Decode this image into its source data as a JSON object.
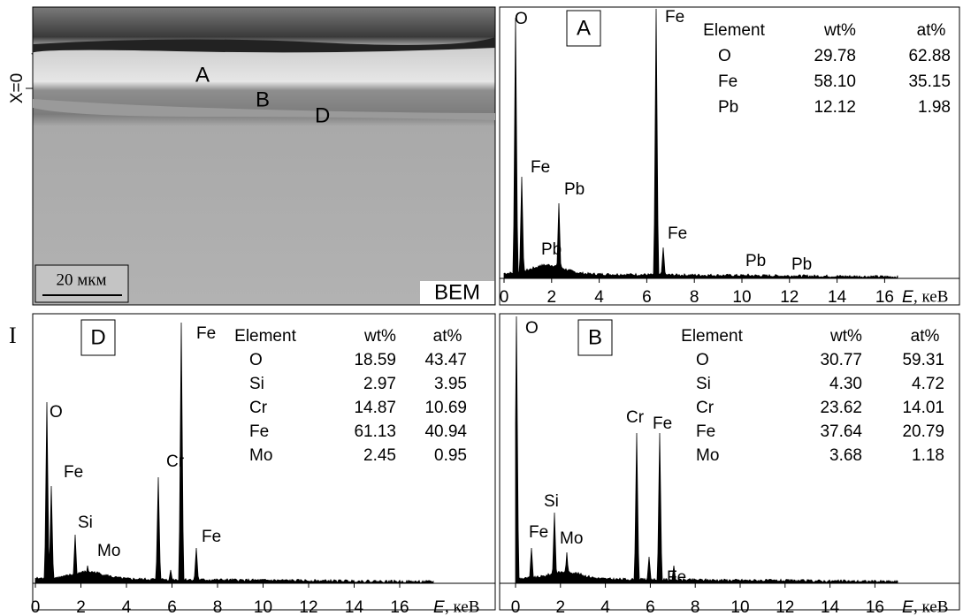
{
  "figure_mark": "I",
  "image": {
    "axis_label": "X=0",
    "layer_labels": [
      "A",
      "B",
      "D"
    ],
    "scale_bar": "20 мкм",
    "mode": "BEM"
  },
  "panels": [
    {
      "label": "A",
      "table": {
        "header": [
          "Element",
          "wt%",
          "at%"
        ],
        "rows": [
          [
            "O",
            "29.78",
            "62.88"
          ],
          [
            "Fe",
            "58.10",
            "35.15"
          ],
          [
            "Pb",
            "12.12",
            "1.98"
          ]
        ]
      },
      "peak_labels": [
        "O",
        "Fe",
        "Fe",
        "Pb",
        "Pb",
        "Fe",
        "Pb",
        "Pb"
      ],
      "x_ticks": [
        "0",
        "2",
        "4",
        "6",
        "8",
        "10",
        "12",
        "14",
        "16"
      ],
      "x_axis_label": {
        "symbol": "E",
        "unit": ", кеВ"
      }
    },
    {
      "label": "D",
      "table": {
        "header": [
          "Element",
          "wt%",
          "at%"
        ],
        "rows": [
          [
            "O",
            "18.59",
            "43.47"
          ],
          [
            "Si",
            "2.97",
            "3.95"
          ],
          [
            "Cr",
            "14.87",
            "10.69"
          ],
          [
            "Fe",
            "61.13",
            "40.94"
          ],
          [
            "Mo",
            "2.45",
            "0.95"
          ]
        ]
      },
      "peak_labels": [
        "O",
        "Fe",
        "Si",
        "Mo",
        "Cr",
        "Fe",
        "Fe"
      ],
      "x_ticks": [
        "0",
        "2",
        "4",
        "6",
        "8",
        "10",
        "12",
        "14",
        "16"
      ],
      "x_axis_label": {
        "symbol": "E",
        "unit": ", кеВ"
      }
    },
    {
      "label": "B",
      "table": {
        "header": [
          "Element",
          "wt%",
          "at%"
        ],
        "rows": [
          [
            "O",
            "30.77",
            "59.31"
          ],
          [
            "Si",
            "4.30",
            "4.72"
          ],
          [
            "Cr",
            "23.62",
            "14.01"
          ],
          [
            "Fe",
            "37.64",
            "20.79"
          ],
          [
            "Mo",
            "3.68",
            "1.18"
          ]
        ]
      },
      "peak_labels": [
        "O",
        "Fe",
        "Si",
        "Mo",
        "Cr",
        "Fe",
        "Fe"
      ],
      "x_ticks": [
        "0",
        "2",
        "4",
        "6",
        "8",
        "10",
        "12",
        "14",
        "16"
      ],
      "x_axis_label": {
        "symbol": "E",
        "unit": ", кеВ"
      }
    }
  ]
}
